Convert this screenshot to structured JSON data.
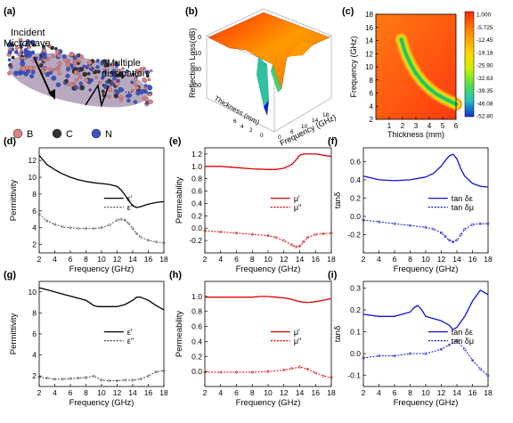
{
  "panels": {
    "a": {
      "tag": "(a)",
      "labels": {
        "incident": "Incident\nMicrowave",
        "multiple": "Multiple\ndissipation",
        "dots": "..."
      },
      "legend": [
        {
          "label": "B",
          "color": "#d98080"
        },
        {
          "label": "C",
          "color": "#333333"
        },
        {
          "label": "N",
          "color": "#3b52c4"
        }
      ]
    },
    "b": {
      "tag": "(b)",
      "zlabel": "Reflection Loss(dB)",
      "xlabel": "Frequency (GHz)",
      "ylabel": "Thickness (mm)"
    },
    "c": {
      "tag": "(c)"
    }
  },
  "colors": {
    "black": "#000000",
    "red": "#e00000",
    "blue": "#1010e0"
  },
  "chart_data": [
    {
      "id": "c",
      "type": "heatmap",
      "tag": "(c)",
      "xlabel": "Thickness (mm)",
      "ylabel": "Frequency (GHz)",
      "xlim": [
        0,
        6
      ],
      "ylim": [
        2,
        18
      ],
      "xticks": [
        1,
        2,
        3,
        4,
        5,
        6
      ],
      "yticks": [
        2,
        4,
        6,
        8,
        10,
        12,
        14,
        16,
        18
      ],
      "colorbar": {
        "min": -52.8,
        "max": 1.0,
        "labels": [
          "1.000",
          "-5.725",
          "-12.45",
          "-19.18",
          "-25.90",
          "-32.63",
          "-39.35",
          "-46.08",
          "-52.80"
        ]
      },
      "band": {
        "thickness": [
          1.9,
          2.2,
          2.6,
          3.0,
          3.5,
          4.0,
          4.5,
          5.0,
          5.5,
          6.0
        ],
        "frequency": [
          14.2,
          12.2,
          10.4,
          9.0,
          7.7,
          6.7,
          5.9,
          5.3,
          4.8,
          4.3
        ]
      }
    },
    {
      "id": "d",
      "type": "line",
      "tag": "(d)",
      "xlabel": "Frequency (GHz)",
      "ylabel": "Permittivity",
      "xlim": [
        2,
        18
      ],
      "ylim": [
        1,
        13.5
      ],
      "xticks": [
        2,
        4,
        6,
        8,
        10,
        12,
        14,
        16,
        18
      ],
      "yticks": [
        2,
        4,
        6,
        8,
        10,
        12
      ],
      "series": [
        {
          "name": "ε'",
          "color": "#000000",
          "dashed": false,
          "x": [
            2,
            3,
            4,
            5,
            6,
            7,
            8,
            9,
            10,
            11,
            12,
            12.5,
            13,
            13.5,
            14,
            14.5,
            15,
            16,
            17,
            18
          ],
          "y": [
            12.6,
            11.5,
            10.9,
            10.4,
            10.0,
            9.7,
            9.5,
            9.35,
            9.25,
            9.15,
            8.9,
            8.5,
            7.9,
            7.2,
            6.6,
            6.4,
            6.5,
            6.8,
            7.0,
            7.1
          ]
        },
        {
          "name": "ε''",
          "color": "#555555",
          "dashed": true,
          "x": [
            2,
            3,
            4,
            5,
            6,
            7,
            8,
            9,
            10,
            11,
            12,
            12.5,
            13,
            13.5,
            14,
            14.5,
            15,
            16,
            17,
            18
          ],
          "y": [
            5.6,
            4.8,
            4.4,
            4.1,
            4.0,
            3.9,
            3.9,
            3.9,
            4.0,
            4.3,
            4.9,
            5.0,
            4.9,
            4.5,
            3.9,
            3.3,
            2.9,
            2.5,
            2.3,
            2.2
          ]
        }
      ]
    },
    {
      "id": "e",
      "type": "line",
      "tag": "(e)",
      "xlabel": "Frequency (GHz)",
      "ylabel": "Permeability",
      "xlim": [
        2,
        18
      ],
      "ylim": [
        -0.4,
        1.3
      ],
      "xticks": [
        2,
        4,
        6,
        8,
        10,
        12,
        14,
        16,
        18
      ],
      "yticks": [
        -0.2,
        0.0,
        0.2,
        0.4,
        0.6,
        0.8,
        1.0,
        1.2
      ],
      "series": [
        {
          "name": "μ'",
          "color": "#e00000",
          "dashed": false,
          "x": [
            2,
            4,
            6,
            8,
            10,
            11,
            12,
            13,
            13.5,
            14,
            14.5,
            15,
            16,
            17,
            18
          ],
          "y": [
            1.0,
            1.0,
            0.98,
            0.96,
            0.95,
            0.95,
            0.97,
            1.03,
            1.1,
            1.18,
            1.2,
            1.2,
            1.2,
            1.18,
            1.16
          ]
        },
        {
          "name": "μ''",
          "color": "#e00000",
          "dashed": true,
          "x": [
            2,
            4,
            6,
            8,
            10,
            11,
            12,
            13,
            13.5,
            14,
            14.5,
            15,
            16,
            17,
            18
          ],
          "y": [
            -0.04,
            -0.06,
            -0.08,
            -0.1,
            -0.12,
            -0.15,
            -0.2,
            -0.27,
            -0.3,
            -0.29,
            -0.22,
            -0.15,
            -0.1,
            -0.09,
            -0.08
          ]
        }
      ]
    },
    {
      "id": "f",
      "type": "line",
      "tag": "(f)",
      "xlabel": "Frequency (GHz)",
      "ylabel": "tanδ",
      "xlim": [
        2,
        18
      ],
      "ylim": [
        -0.4,
        0.75
      ],
      "xticks": [
        2,
        4,
        6,
        8,
        10,
        12,
        14,
        16,
        18
      ],
      "yticks": [
        -0.2,
        0.0,
        0.2,
        0.4,
        0.6
      ],
      "series": [
        {
          "name": "tan δε",
          "color": "#1010e0",
          "dashed": false,
          "x": [
            2,
            4,
            6,
            8,
            10,
            11,
            12,
            12.5,
            13,
            13.5,
            14,
            14.5,
            15,
            16,
            17,
            18
          ],
          "y": [
            0.44,
            0.4,
            0.39,
            0.4,
            0.43,
            0.47,
            0.55,
            0.61,
            0.66,
            0.68,
            0.63,
            0.52,
            0.44,
            0.36,
            0.33,
            0.32
          ]
        },
        {
          "name": "tan δμ",
          "color": "#1010e0",
          "dashed": true,
          "x": [
            2,
            4,
            6,
            8,
            10,
            11,
            12,
            12.5,
            13,
            13.5,
            14,
            14.5,
            15,
            16,
            17,
            18
          ],
          "y": [
            -0.04,
            -0.06,
            -0.08,
            -0.1,
            -0.12,
            -0.14,
            -0.18,
            -0.22,
            -0.26,
            -0.28,
            -0.26,
            -0.2,
            -0.14,
            -0.09,
            -0.08,
            -0.08
          ]
        }
      ]
    },
    {
      "id": "g",
      "type": "line",
      "tag": "(g)",
      "xlabel": "Frequency (GHz)",
      "ylabel": "Permittivity",
      "xlim": [
        2,
        18
      ],
      "ylim": [
        1,
        11
      ],
      "xticks": [
        2,
        4,
        6,
        8,
        10,
        12,
        14,
        16,
        18
      ],
      "yticks": [
        2,
        4,
        6,
        8,
        10
      ],
      "series": [
        {
          "name": "ε'",
          "color": "#000000",
          "dashed": false,
          "x": [
            2,
            3,
            4,
            5,
            6,
            7,
            8,
            9,
            9.5,
            10,
            11,
            12,
            13,
            14,
            14.5,
            15,
            16,
            17,
            18
          ],
          "y": [
            10.4,
            10.2,
            10.0,
            9.8,
            9.6,
            9.4,
            9.2,
            8.7,
            8.6,
            8.6,
            8.6,
            8.6,
            8.8,
            9.2,
            9.5,
            9.5,
            9.2,
            8.7,
            8.3
          ]
        },
        {
          "name": "ε''",
          "color": "#444444",
          "dashed": true,
          "x": [
            2,
            3,
            4,
            5,
            6,
            7,
            8,
            9,
            10,
            11,
            12,
            13,
            14,
            15,
            16,
            17,
            18
          ],
          "y": [
            1.9,
            1.8,
            1.7,
            1.7,
            1.75,
            1.8,
            1.85,
            2.0,
            1.6,
            1.55,
            1.55,
            1.6,
            1.6,
            1.7,
            2.0,
            2.4,
            2.5
          ]
        }
      ]
    },
    {
      "id": "h",
      "type": "line",
      "tag": "(h)",
      "xlabel": "Frequency (GHz)",
      "ylabel": "Permeability",
      "xlim": [
        2,
        18
      ],
      "ylim": [
        -0.2,
        1.2
      ],
      "xticks": [
        2,
        4,
        6,
        8,
        10,
        12,
        14,
        16,
        18
      ],
      "yticks": [
        0.0,
        0.2,
        0.4,
        0.6,
        0.8,
        1.0
      ],
      "series": [
        {
          "name": "μ'",
          "color": "#e00000",
          "dashed": false,
          "x": [
            2,
            4,
            6,
            8,
            9,
            10,
            11,
            12,
            13,
            14,
            15,
            16,
            17,
            18
          ],
          "y": [
            0.99,
            0.99,
            0.99,
            0.99,
            1.0,
            1.0,
            0.99,
            0.98,
            0.96,
            0.93,
            0.92,
            0.93,
            0.95,
            0.97
          ]
        },
        {
          "name": "μ''",
          "color": "#e00000",
          "dashed": true,
          "x": [
            2,
            4,
            6,
            8,
            10,
            12,
            13,
            14,
            15,
            16,
            17,
            18
          ],
          "y": [
            -0.01,
            -0.01,
            -0.01,
            -0.01,
            0.0,
            0.02,
            0.04,
            0.06,
            0.03,
            -0.02,
            -0.06,
            -0.08
          ]
        }
      ]
    },
    {
      "id": "i",
      "type": "line",
      "tag": "(i)",
      "xlabel": "Frequency (GHz)",
      "ylabel": "tanδ",
      "xlim": [
        2,
        18
      ],
      "ylim": [
        -0.15,
        0.33
      ],
      "xticks": [
        2,
        4,
        6,
        8,
        10,
        12,
        14,
        16,
        18
      ],
      "yticks": [
        -0.1,
        0.0,
        0.1,
        0.2,
        0.3
      ],
      "series": [
        {
          "name": "tan δε",
          "color": "#1010e0",
          "dashed": false,
          "x": [
            2,
            4,
            6,
            8,
            8.5,
            9,
            9.5,
            10,
            11,
            12,
            13,
            13.5,
            14,
            15,
            16,
            17,
            18
          ],
          "y": [
            0.18,
            0.17,
            0.17,
            0.19,
            0.21,
            0.22,
            0.2,
            0.17,
            0.16,
            0.15,
            0.13,
            0.11,
            0.12,
            0.17,
            0.24,
            0.29,
            0.27
          ]
        },
        {
          "name": "tan δμ",
          "color": "#1010e0",
          "dashed": true,
          "x": [
            2,
            4,
            6,
            8,
            10,
            12,
            13,
            14,
            15,
            16,
            17,
            18
          ],
          "y": [
            -0.02,
            -0.01,
            -0.01,
            0.0,
            0.0,
            0.02,
            0.04,
            0.06,
            0.02,
            -0.03,
            -0.07,
            -0.1
          ]
        }
      ]
    }
  ]
}
